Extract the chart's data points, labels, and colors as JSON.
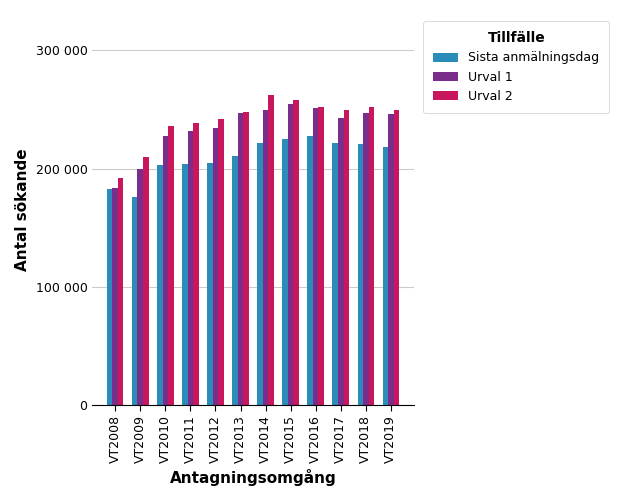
{
  "categories": [
    "VT2008",
    "VT2009",
    "VT2010",
    "VT2011",
    "VT2012",
    "VT2013",
    "VT2014",
    "VT2015",
    "VT2016",
    "VT2017",
    "VT2018",
    "VT2019"
  ],
  "sista_anmalningsdag": [
    183000,
    176000,
    203000,
    204000,
    205000,
    211000,
    222000,
    225000,
    228000,
    222000,
    221000,
    218000
  ],
  "urval1": [
    184000,
    200000,
    228000,
    232000,
    234000,
    247000,
    250000,
    255000,
    251000,
    243000,
    247000,
    246000
  ],
  "urval2": [
    192000,
    210000,
    236000,
    239000,
    242000,
    248000,
    262000,
    258000,
    252000,
    250000,
    252000,
    250000
  ],
  "color_sista": "#2b8cba",
  "color_urval1": "#7b2d8b",
  "color_urval2": "#c8175d",
  "xlabel": "Antagningsomgång",
  "ylabel": "Antal sökande",
  "legend_title": "Tillfälle",
  "legend_labels": [
    "Sista anmälningsdag",
    "Urval 1",
    "Urval 2"
  ],
  "ylim": [
    0,
    330000
  ],
  "yticks": [
    0,
    100000,
    200000,
    300000
  ],
  "ytick_labels": [
    "0",
    "100 000",
    "200 000",
    "300 000"
  ],
  "background_color": "#ffffff",
  "grid_color": "#cccccc"
}
